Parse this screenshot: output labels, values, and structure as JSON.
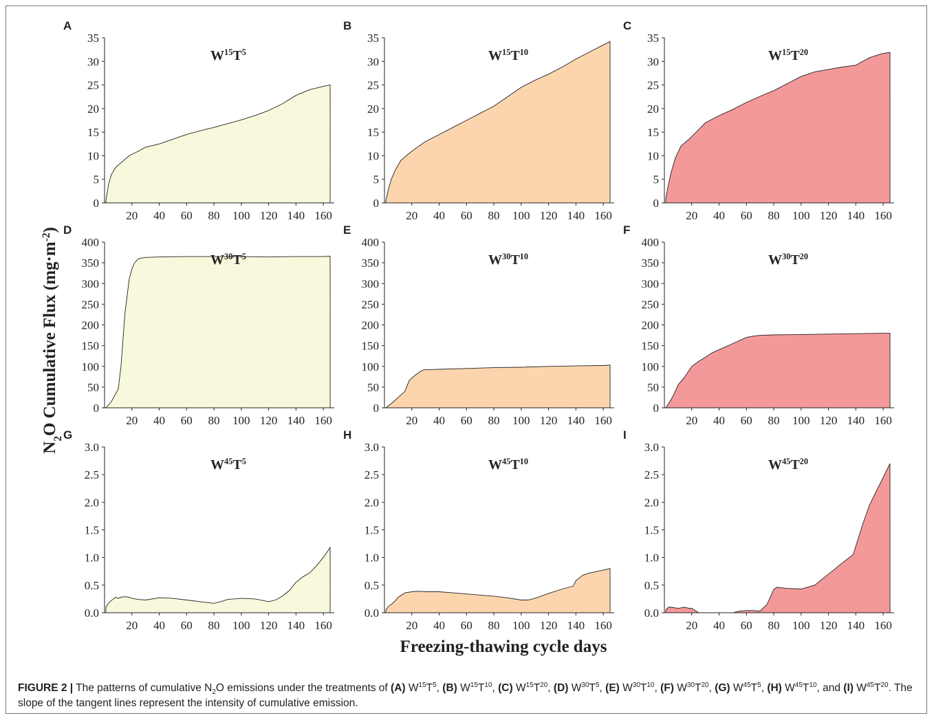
{
  "figure": {
    "ylabel_parts": [
      {
        "text": "N"
      },
      {
        "text": "2",
        "sub": true
      },
      {
        "text": "O Cumulative Flux (mg·m"
      },
      {
        "text": "-2",
        "sup": true
      },
      {
        "text": ")"
      }
    ],
    "xlabel": "Freezing-thawing cycle days",
    "caption": [
      {
        "text": "FIGURE 2 |",
        "bold": true
      },
      {
        "text": " The patterns of cumulative N"
      },
      {
        "text": "2",
        "sub": true
      },
      {
        "text": "O emissions under the treatments of "
      },
      {
        "text": "(A)",
        "bold": true
      },
      {
        "text": " W"
      },
      {
        "text": "15",
        "sup": true
      },
      {
        "text": "T"
      },
      {
        "text": "5",
        "sup": true
      },
      {
        "text": ", "
      },
      {
        "text": "(B)",
        "bold": true
      },
      {
        "text": " W"
      },
      {
        "text": "15",
        "sup": true
      },
      {
        "text": "T"
      },
      {
        "text": "10",
        "sup": true
      },
      {
        "text": ", "
      },
      {
        "text": "(C)",
        "bold": true
      },
      {
        "text": " W"
      },
      {
        "text": "15",
        "sup": true
      },
      {
        "text": "T"
      },
      {
        "text": "20",
        "sup": true
      },
      {
        "text": ", "
      },
      {
        "text": "(D)",
        "bold": true
      },
      {
        "text": " W"
      },
      {
        "text": "30",
        "sup": true
      },
      {
        "text": "T"
      },
      {
        "text": "5",
        "sup": true
      },
      {
        "text": ", "
      },
      {
        "text": "(E)",
        "bold": true
      },
      {
        "text": " W"
      },
      {
        "text": "30",
        "sup": true
      },
      {
        "text": "T"
      },
      {
        "text": "10",
        "sup": true
      },
      {
        "text": ", "
      },
      {
        "text": "(F)",
        "bold": true
      },
      {
        "text": " W"
      },
      {
        "text": "30",
        "sup": true
      },
      {
        "text": "T"
      },
      {
        "text": "20",
        "sup": true
      },
      {
        "text": ", "
      },
      {
        "text": "(G)",
        "bold": true
      },
      {
        "text": " W"
      },
      {
        "text": "45",
        "sup": true
      },
      {
        "text": "T"
      },
      {
        "text": "5",
        "sup": true
      },
      {
        "text": ", "
      },
      {
        "text": "(H)",
        "bold": true
      },
      {
        "text": " W"
      },
      {
        "text": "45",
        "sup": true
      },
      {
        "text": "T"
      },
      {
        "text": "10",
        "sup": true
      },
      {
        "text": ", and "
      },
      {
        "text": "(I)",
        "bold": true
      },
      {
        "text": " W"
      },
      {
        "text": "45",
        "sup": true
      },
      {
        "text": "T"
      },
      {
        "text": "20",
        "sup": true
      },
      {
        "text": ". The slope of the tangent lines represent the intensity of cumulative emission."
      }
    ]
  },
  "chart_data": [
    {
      "type": "area",
      "panel": "A",
      "title_parts": [
        {
          "text": "W"
        },
        {
          "text": "15",
          "sup": true
        },
        {
          "text": "T"
        },
        {
          "text": "5",
          "sup": true
        }
      ],
      "color": "#f8f8dc",
      "x": [
        1,
        3,
        5,
        8,
        12,
        18,
        25,
        30,
        40,
        50,
        60,
        70,
        80,
        90,
        100,
        110,
        120,
        130,
        140,
        150,
        160,
        165
      ],
      "values": [
        0.5,
        4,
        6,
        7.5,
        8.5,
        10,
        11,
        11.8,
        12.5,
        13.5,
        14.5,
        15.3,
        16,
        16.8,
        17.6,
        18.5,
        19.6,
        21,
        22.8,
        24,
        24.7,
        25
      ],
      "xlim": [
        0,
        168
      ],
      "xticks": [
        20,
        40,
        60,
        80,
        100,
        120,
        140,
        160
      ],
      "ylim": [
        0,
        35
      ],
      "yticks": [
        0,
        5,
        10,
        15,
        20,
        25,
        30,
        35
      ]
    },
    {
      "type": "area",
      "panel": "B",
      "title_parts": [
        {
          "text": "W"
        },
        {
          "text": "15",
          "sup": true
        },
        {
          "text": "T"
        },
        {
          "text": "10",
          "sup": true
        }
      ],
      "color": "#fcd5af",
      "x": [
        1,
        3,
        5,
        8,
        12,
        18,
        25,
        30,
        40,
        50,
        60,
        70,
        80,
        90,
        100,
        110,
        120,
        130,
        140,
        150,
        160,
        165
      ],
      "values": [
        0.5,
        3,
        5,
        7,
        9,
        10.5,
        12,
        13,
        14.5,
        16,
        17.5,
        19,
        20.5,
        22.5,
        24.5,
        26,
        27.3,
        28.8,
        30.5,
        32,
        33.5,
        34.2
      ],
      "xlim": [
        0,
        168
      ],
      "xticks": [
        20,
        40,
        60,
        80,
        100,
        120,
        140,
        160
      ],
      "ylim": [
        0,
        35
      ],
      "yticks": [
        0,
        5,
        10,
        15,
        20,
        25,
        30,
        35
      ]
    },
    {
      "type": "area",
      "panel": "C",
      "title_parts": [
        {
          "text": "W"
        },
        {
          "text": "15",
          "sup": true
        },
        {
          "text": "T"
        },
        {
          "text": "20",
          "sup": true
        }
      ],
      "color": "#f4999a",
      "x": [
        1,
        3,
        5,
        8,
        12,
        18,
        25,
        30,
        40,
        50,
        60,
        70,
        80,
        90,
        100,
        110,
        120,
        130,
        140,
        150,
        160,
        165
      ],
      "values": [
        1,
        4,
        6.5,
        9.5,
        12,
        13.5,
        15.5,
        17,
        18.5,
        19.8,
        21.3,
        22.6,
        23.8,
        25.3,
        26.8,
        27.8,
        28.3,
        28.8,
        29.2,
        30.8,
        31.7,
        31.9
      ],
      "xlim": [
        0,
        168
      ],
      "xticks": [
        20,
        40,
        60,
        80,
        100,
        120,
        140,
        160
      ],
      "ylim": [
        0,
        35
      ],
      "yticks": [
        0,
        5,
        10,
        15,
        20,
        25,
        30,
        35
      ]
    },
    {
      "type": "area",
      "panel": "D",
      "title_parts": [
        {
          "text": "W"
        },
        {
          "text": "30",
          "sup": true
        },
        {
          "text": "T"
        },
        {
          "text": "5",
          "sup": true
        }
      ],
      "color": "#f8f8dc",
      "x": [
        1,
        5,
        10,
        12,
        15,
        18,
        20,
        22,
        25,
        28,
        30,
        40,
        60,
        80,
        100,
        120,
        140,
        160,
        165
      ],
      "values": [
        0,
        15,
        45,
        100,
        230,
        310,
        335,
        350,
        360,
        362,
        363,
        364,
        365,
        365,
        365,
        364,
        365,
        365,
        366
      ],
      "xlim": [
        0,
        168
      ],
      "xticks": [
        20,
        40,
        60,
        80,
        100,
        120,
        140,
        160
      ],
      "ylim": [
        0,
        400
      ],
      "yticks": [
        0,
        50,
        100,
        150,
        200,
        250,
        300,
        350,
        400
      ]
    },
    {
      "type": "area",
      "panel": "E",
      "title_parts": [
        {
          "text": "W"
        },
        {
          "text": "30",
          "sup": true
        },
        {
          "text": "T"
        },
        {
          "text": "10",
          "sup": true
        }
      ],
      "color": "#fcd5af",
      "x": [
        1,
        5,
        10,
        15,
        18,
        20,
        25,
        28,
        30,
        40,
        60,
        80,
        100,
        120,
        140,
        160,
        165
      ],
      "values": [
        0,
        10,
        25,
        40,
        65,
        72,
        85,
        91,
        92,
        93,
        95,
        97,
        98,
        100,
        101,
        102,
        103
      ],
      "xlim": [
        0,
        168
      ],
      "xticks": [
        20,
        40,
        60,
        80,
        100,
        120,
        140,
        160
      ],
      "ylim": [
        0,
        400
      ],
      "yticks": [
        0,
        50,
        100,
        150,
        200,
        250,
        300,
        350,
        400
      ]
    },
    {
      "type": "area",
      "panel": "F",
      "title_parts": [
        {
          "text": "W"
        },
        {
          "text": "30",
          "sup": true
        },
        {
          "text": "T"
        },
        {
          "text": "20",
          "sup": true
        }
      ],
      "color": "#f4999a",
      "x": [
        1,
        5,
        8,
        10,
        15,
        20,
        25,
        30,
        35,
        40,
        50,
        60,
        65,
        70,
        80,
        100,
        120,
        140,
        160,
        165
      ],
      "values": [
        0,
        20,
        40,
        55,
        75,
        100,
        112,
        122,
        133,
        140,
        155,
        170,
        173,
        175,
        176,
        177,
        178,
        179,
        180,
        180
      ],
      "xlim": [
        0,
        168
      ],
      "xticks": [
        20,
        40,
        60,
        80,
        100,
        120,
        140,
        160
      ],
      "ylim": [
        0,
        400
      ],
      "yticks": [
        0,
        50,
        100,
        150,
        200,
        250,
        300,
        350,
        400
      ]
    },
    {
      "type": "area",
      "panel": "G",
      "title_parts": [
        {
          "text": "W"
        },
        {
          "text": "45",
          "sup": true
        },
        {
          "text": "T"
        },
        {
          "text": "5",
          "sup": true
        }
      ],
      "color": "#f8f8dc",
      "x": [
        1,
        3,
        5,
        8,
        10,
        12,
        15,
        18,
        20,
        25,
        30,
        40,
        50,
        60,
        70,
        80,
        85,
        90,
        100,
        110,
        120,
        125,
        130,
        135,
        140,
        145,
        150,
        155,
        160,
        165
      ],
      "values": [
        0.1,
        0.18,
        0.22,
        0.28,
        0.26,
        0.28,
        0.29,
        0.28,
        0.26,
        0.24,
        0.23,
        0.27,
        0.26,
        0.23,
        0.2,
        0.17,
        0.2,
        0.24,
        0.26,
        0.25,
        0.2,
        0.23,
        0.3,
        0.4,
        0.55,
        0.65,
        0.72,
        0.85,
        1.0,
        1.18
      ],
      "xlim": [
        0,
        168
      ],
      "xticks": [
        20,
        40,
        60,
        80,
        100,
        120,
        140,
        160
      ],
      "ylim": [
        0,
        3
      ],
      "yticks": [
        {
          "value": 0,
          "label": "0.0"
        },
        0.5,
        {
          "value": 1,
          "label": "1.0"
        },
        1.5,
        {
          "value": 2,
          "label": "2.0"
        },
        2.5,
        {
          "value": 3,
          "label": "3.0"
        }
      ]
    },
    {
      "type": "area",
      "panel": "H",
      "title_parts": [
        {
          "text": "W"
        },
        {
          "text": "45",
          "sup": true
        },
        {
          "text": "T"
        },
        {
          "text": "10",
          "sup": true
        }
      ],
      "color": "#fcd5af",
      "x": [
        1,
        3,
        5,
        8,
        10,
        15,
        20,
        25,
        30,
        40,
        50,
        60,
        70,
        80,
        90,
        100,
        105,
        110,
        120,
        130,
        138,
        140,
        145,
        150,
        160,
        165
      ],
      "values": [
        0.05,
        0.12,
        0.15,
        0.22,
        0.28,
        0.36,
        0.38,
        0.39,
        0.38,
        0.38,
        0.36,
        0.34,
        0.32,
        0.3,
        0.27,
        0.23,
        0.23,
        0.26,
        0.35,
        0.43,
        0.48,
        0.58,
        0.68,
        0.72,
        0.77,
        0.8
      ],
      "xlim": [
        0,
        168
      ],
      "xticks": [
        20,
        40,
        60,
        80,
        100,
        120,
        140,
        160
      ],
      "ylim": [
        0,
        3
      ],
      "yticks": [
        {
          "value": 0,
          "label": "0.0"
        },
        0.5,
        {
          "value": 1,
          "label": "1.0"
        },
        1.5,
        {
          "value": 2,
          "label": "2.0"
        },
        2.5,
        {
          "value": 3,
          "label": "3.0"
        }
      ]
    },
    {
      "type": "area",
      "panel": "I",
      "title_parts": [
        {
          "text": "W"
        },
        {
          "text": "45",
          "sup": true
        },
        {
          "text": "T"
        },
        {
          "text": "20",
          "sup": true
        }
      ],
      "color": "#f4999a",
      "x": [
        1,
        3,
        5,
        10,
        15,
        18,
        20,
        22,
        25,
        30,
        40,
        50,
        55,
        60,
        65,
        70,
        75,
        80,
        82,
        90,
        100,
        110,
        120,
        130,
        138,
        145,
        150,
        160,
        165
      ],
      "values": [
        0.05,
        0.1,
        0.1,
        0.08,
        0.1,
        0.08,
        0.08,
        0.05,
        0,
        0,
        0,
        0,
        0.03,
        0.04,
        0.04,
        0.03,
        0.15,
        0.42,
        0.46,
        0.44,
        0.43,
        0.5,
        0.7,
        0.9,
        1.05,
        1.6,
        1.95,
        2.45,
        2.7
      ],
      "xlim": [
        0,
        168
      ],
      "xticks": [
        20,
        40,
        60,
        80,
        100,
        120,
        140,
        160
      ],
      "ylim": [
        0,
        3
      ],
      "yticks": [
        {
          "value": 0,
          "label": "0.0"
        },
        0.5,
        {
          "value": 1,
          "label": "1.0"
        },
        1.5,
        {
          "value": 2,
          "label": "2.0"
        },
        2.5,
        {
          "value": 3,
          "label": "3.0"
        }
      ]
    }
  ]
}
